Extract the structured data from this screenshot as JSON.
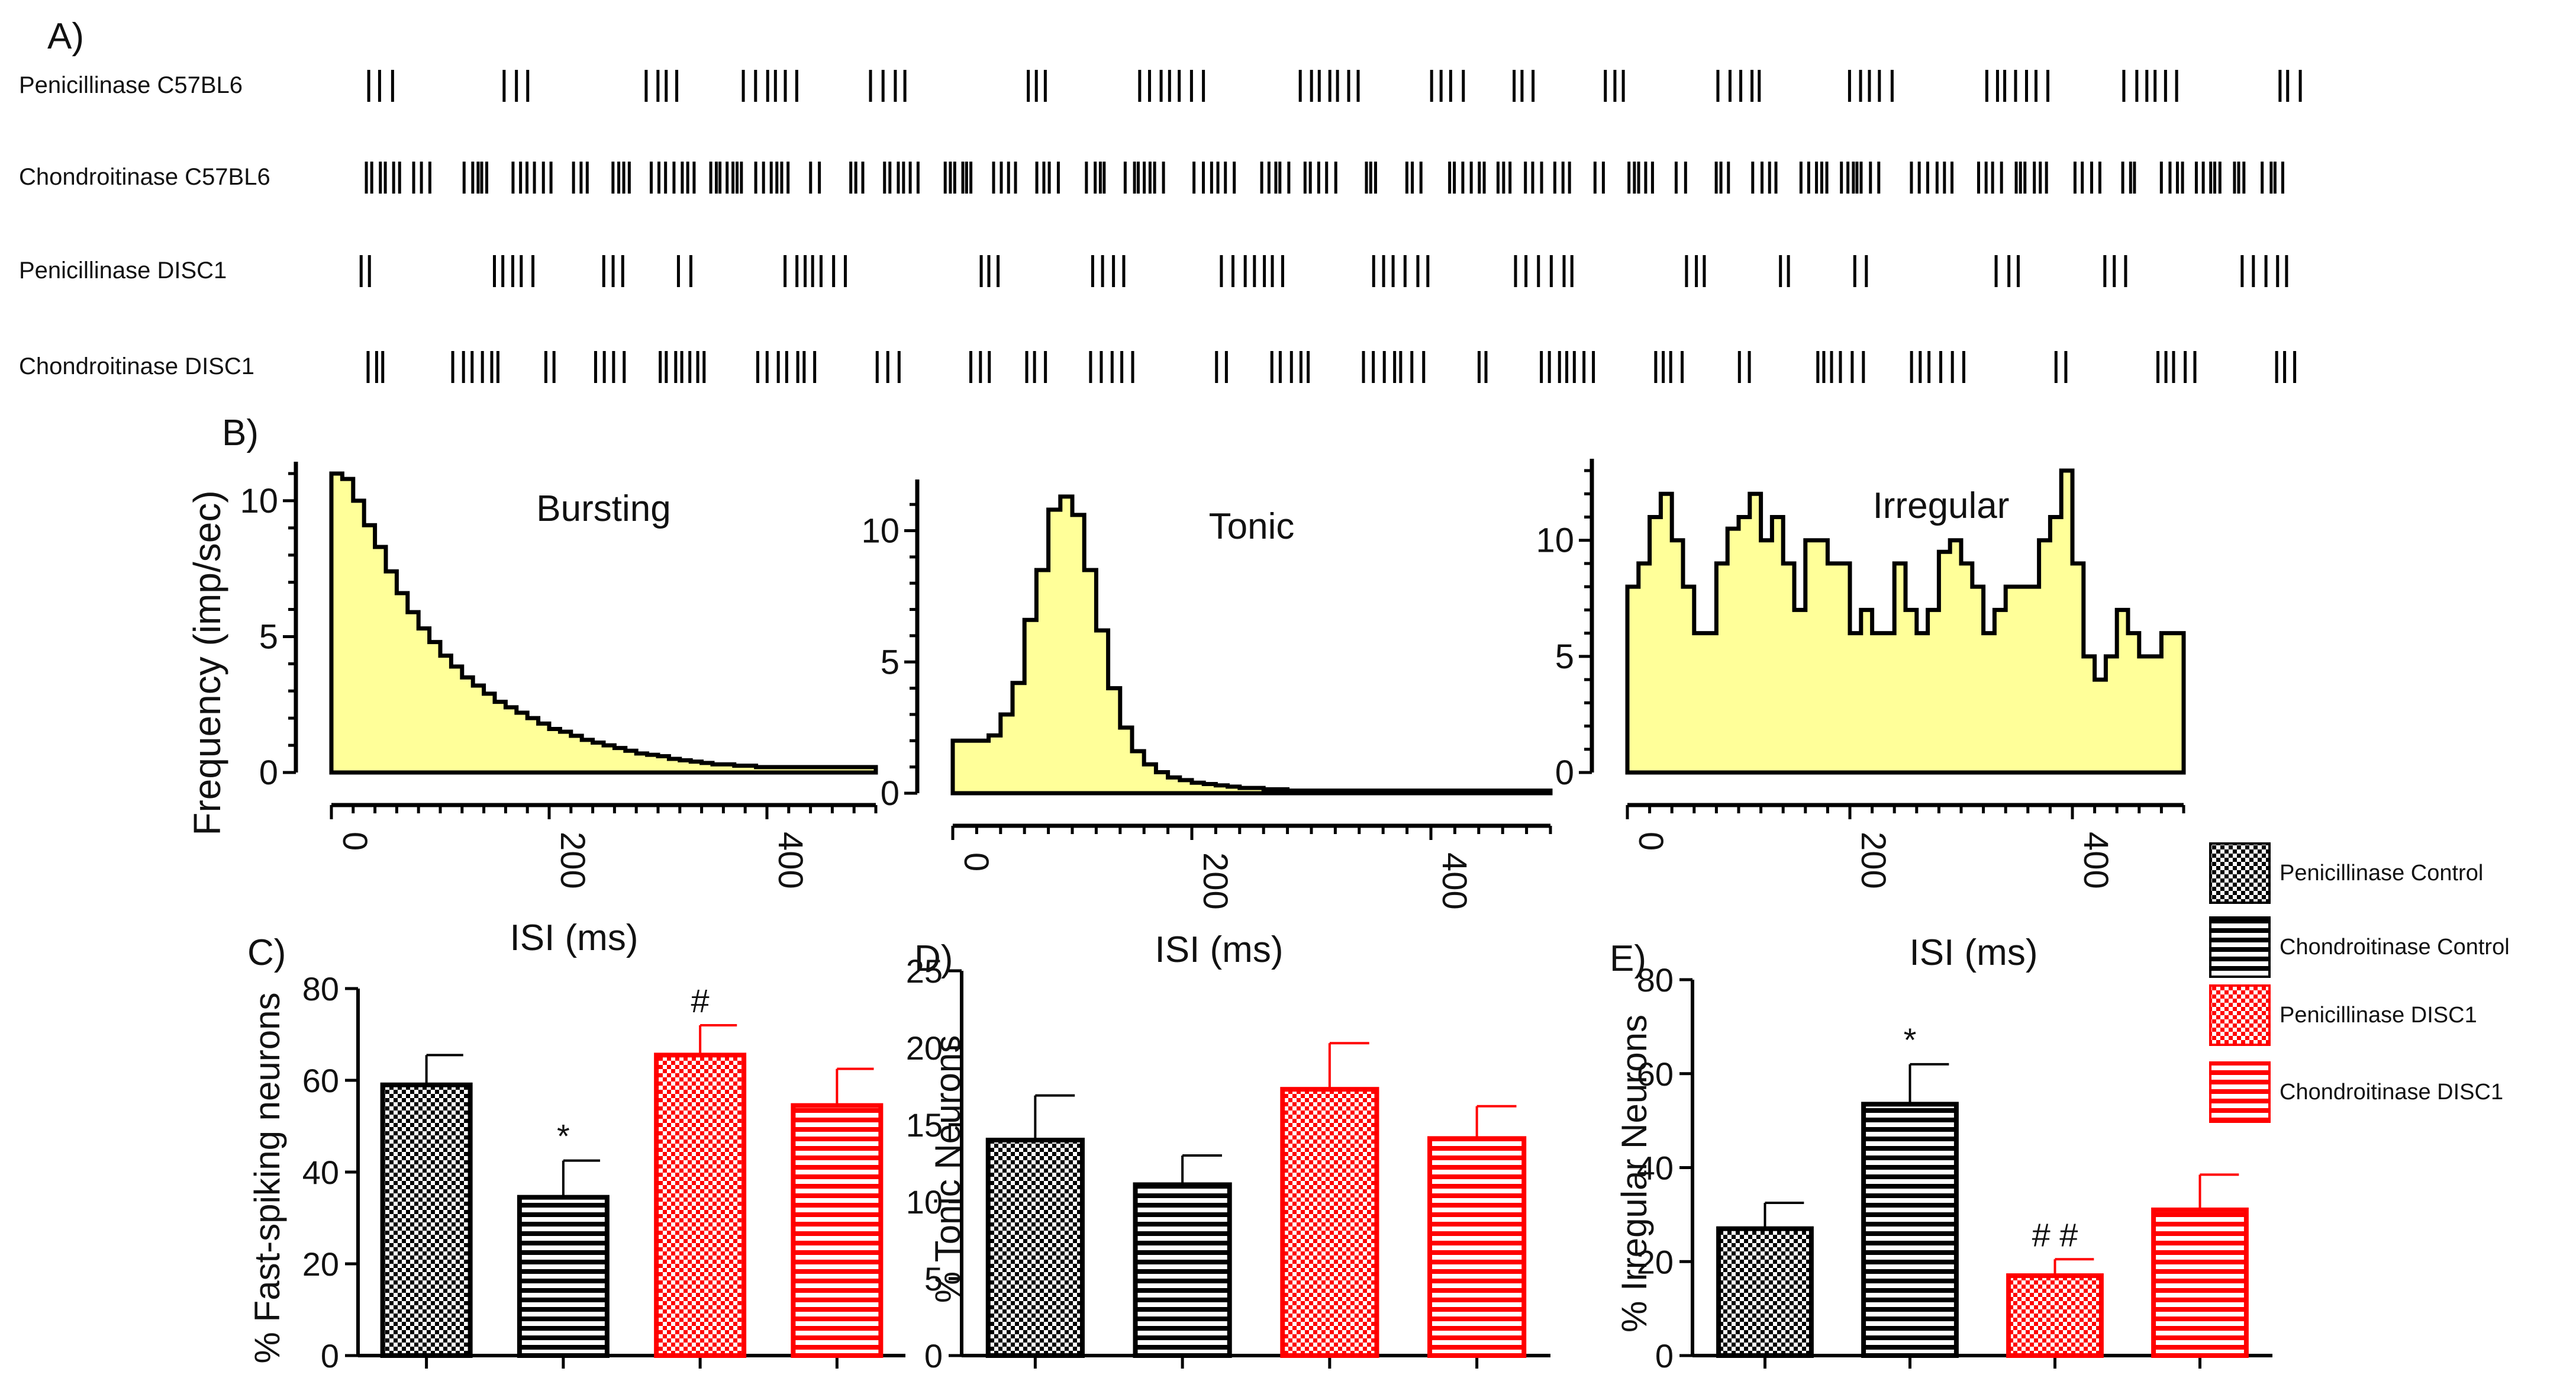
{
  "chart_data": {
    "raster": {
      "panel_label": "A)",
      "rows": [
        {
          "label": "Penicillinase C57BL6",
          "density": "low",
          "spikes_ms": []
        },
        {
          "label": "Chondroitinase  C57BL6",
          "density": "high"
        },
        {
          "label": "Penicillinase DISC1",
          "density": "low"
        },
        {
          "label": "Chondroitinase  DISC1",
          "density": "medium"
        }
      ]
    },
    "isi_panel_label": "B)",
    "isi_histograms": [
      {
        "type": "area",
        "title": "Bursting",
        "ylabel": "Frequency (imp/sec)",
        "xlabel": "ISI (ms)",
        "xlim": [
          0,
          500
        ],
        "ylim": [
          0,
          11
        ],
        "xticks": [
          "0",
          "200",
          "400"
        ],
        "yticks": [
          "0",
          "5",
          "10"
        ],
        "x": [
          0,
          10,
          20,
          30,
          40,
          50,
          60,
          70,
          80,
          90,
          100,
          110,
          120,
          130,
          140,
          150,
          160,
          170,
          180,
          190,
          200,
          210,
          220,
          230,
          240,
          250,
          260,
          270,
          280,
          290,
          300,
          310,
          320,
          330,
          340,
          350,
          360,
          370,
          380,
          390,
          400,
          420,
          440,
          460,
          480,
          500
        ],
        "y": [
          11,
          10.8,
          10,
          9.1,
          8.3,
          7.4,
          6.6,
          5.9,
          5.3,
          4.8,
          4.3,
          3.9,
          3.5,
          3.2,
          2.9,
          2.6,
          2.4,
          2.2,
          2.0,
          1.8,
          1.6,
          1.5,
          1.35,
          1.2,
          1.1,
          1.0,
          0.9,
          0.8,
          0.7,
          0.65,
          0.6,
          0.5,
          0.45,
          0.4,
          0.35,
          0.3,
          0.3,
          0.25,
          0.25,
          0.2,
          0.2,
          0.2,
          0.2,
          0.2,
          0.2,
          0.2
        ]
      },
      {
        "type": "area",
        "title": "Tonic",
        "xlabel": "ISI (ms)",
        "xlim": [
          0,
          500
        ],
        "ylim": [
          0,
          11.5
        ],
        "xticks": [
          "0",
          "200",
          "400"
        ],
        "yticks": [
          "0",
          "5",
          "10"
        ],
        "x": [
          0,
          10,
          20,
          30,
          40,
          50,
          60,
          70,
          80,
          90,
          100,
          110,
          120,
          130,
          140,
          150,
          160,
          170,
          180,
          190,
          200,
          210,
          220,
          230,
          240,
          250,
          260,
          270,
          280,
          290,
          300,
          350,
          400,
          450,
          500
        ],
        "y": [
          2,
          2,
          2,
          2.2,
          3,
          4.2,
          6.6,
          8.5,
          10.8,
          11.3,
          10.6,
          8.5,
          6.2,
          4,
          2.5,
          1.6,
          1.1,
          0.8,
          0.6,
          0.5,
          0.4,
          0.35,
          0.3,
          0.25,
          0.2,
          0.2,
          0.15,
          0.15,
          0.1,
          0.1,
          0.1,
          0.1,
          0.1,
          0.1,
          0.1
        ]
      },
      {
        "type": "area",
        "title": "Irregular",
        "xlabel": "ISI (ms)",
        "xlim": [
          0,
          500
        ],
        "ylim": [
          0,
          13
        ],
        "xticks": [
          "0",
          "200",
          "400"
        ],
        "yticks": [
          "0",
          "5",
          "10"
        ],
        "x": [
          0,
          10,
          20,
          30,
          40,
          50,
          60,
          70,
          80,
          90,
          100,
          110,
          120,
          130,
          140,
          150,
          160,
          170,
          180,
          190,
          200,
          210,
          220,
          230,
          240,
          250,
          260,
          270,
          280,
          290,
          300,
          310,
          320,
          330,
          340,
          350,
          360,
          370,
          380,
          390,
          400,
          410,
          420,
          430,
          440,
          450,
          460,
          470,
          480,
          490
        ],
        "y": [
          8,
          9,
          11,
          12,
          10,
          8,
          6,
          6,
          9,
          10.5,
          11,
          12,
          10,
          11,
          9,
          7,
          10,
          10,
          9,
          9,
          6,
          7,
          6,
          6,
          9,
          7,
          6,
          7,
          9.5,
          10,
          9,
          8,
          6,
          7,
          8,
          8,
          8,
          10,
          11,
          13,
          9,
          5,
          4,
          5,
          7,
          6,
          5,
          5,
          6,
          6
        ]
      }
    ],
    "bar_panels": [
      {
        "type": "bar",
        "panel_label": "C)",
        "ylabel": "% Fast-spiking neurons",
        "ylim": [
          0,
          80
        ],
        "yticks": [
          "0",
          "20",
          "40",
          "60",
          "80"
        ],
        "categories": [
          "Penicillinase Control",
          "Chondroitinase Control",
          "Penicillinase DISC1",
          "Chondroitinase DISC1"
        ],
        "values": [
          59,
          34.5,
          65.5,
          54.5
        ],
        "errors": [
          6.5,
          8,
          6.5,
          8
        ],
        "annotations": [
          "",
          "*",
          "#",
          ""
        ]
      },
      {
        "type": "bar",
        "panel_label": "D)",
        "ylabel": "% Tonic Neurons",
        "ylim": [
          0,
          25
        ],
        "yticks": [
          "0",
          "5",
          "10",
          "15",
          "20",
          "25"
        ],
        "categories": [
          "Penicillinase Control",
          "Chondroitinase Control",
          "Penicillinase DISC1",
          "Chondroitinase DISC1"
        ],
        "values": [
          14,
          11.1,
          17.3,
          14.1
        ],
        "errors": [
          2.9,
          1.9,
          3,
          2.1
        ],
        "annotations": [
          "",
          "",
          "",
          ""
        ]
      },
      {
        "type": "bar",
        "panel_label": "E)",
        "ylabel": "% Irregular Neurons",
        "ylim": [
          0,
          80
        ],
        "yticks": [
          "0",
          "20",
          "40",
          "60",
          "80"
        ],
        "categories": [
          "Penicillinase Control",
          "Chondroitinase Control",
          "Penicillinase DISC1",
          "Chondroitinase DISC1"
        ],
        "values": [
          27,
          53.5,
          17,
          31
        ],
        "errors": [
          5.5,
          8.5,
          3.5,
          7.5
        ],
        "annotations": [
          "",
          "*",
          "# #",
          ""
        ]
      }
    ],
    "legend": [
      {
        "label": "Penicillinase    Control",
        "color": "#000000",
        "pattern": "checker"
      },
      {
        "label": "Chondroitinase     Control",
        "color": "#000000",
        "pattern": "stripes"
      },
      {
        "label": "Penicillinase DISC1",
        "color": "#ff0000",
        "pattern": "checker"
      },
      {
        "label": "Chondroitinase DISC1",
        "color": "#ff0000",
        "pattern": "stripes"
      }
    ]
  }
}
